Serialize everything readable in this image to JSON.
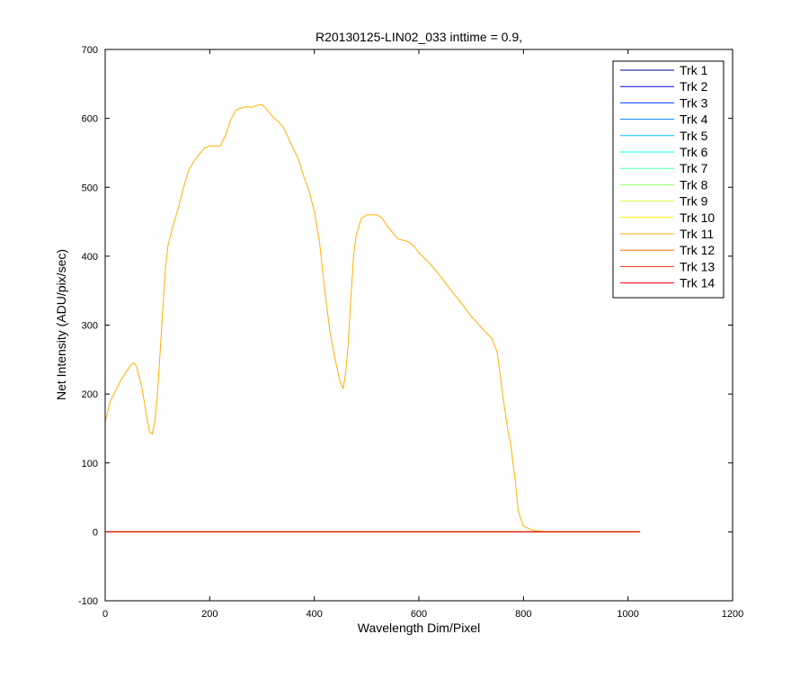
{
  "chart_data": {
    "type": "line",
    "title": "R20130125-LIN02_033 inttime = 0.9,",
    "xlabel": "Wavelength Dim/Pixel",
    "ylabel": "Net Intensity (ADU/pix/sec)",
    "xlim": [
      0,
      1200
    ],
    "ylim": [
      -100,
      700
    ],
    "xticks": [
      0,
      200,
      400,
      600,
      800,
      1000,
      1200
    ],
    "yticks": [
      -100,
      0,
      100,
      200,
      300,
      400,
      500,
      600,
      700
    ],
    "grid": false,
    "legend_position": "top-right",
    "series": [
      {
        "name": "Trk 1",
        "color": "#00008f",
        "x": [
          0,
          1023
        ],
        "y": [
          0,
          0
        ]
      },
      {
        "name": "Trk 2",
        "color": "#0000d6",
        "x": [
          0,
          1023
        ],
        "y": [
          0,
          0
        ]
      },
      {
        "name": "Trk 3",
        "color": "#0040ff",
        "x": [
          0,
          1023
        ],
        "y": [
          0,
          0
        ]
      },
      {
        "name": "Trk 4",
        "color": "#0080ff",
        "x": [
          0,
          1023
        ],
        "y": [
          0,
          0
        ]
      },
      {
        "name": "Trk 5",
        "color": "#00bfff",
        "x": [
          0,
          1023
        ],
        "y": [
          0,
          0
        ]
      },
      {
        "name": "Trk 6",
        "color": "#10ffef",
        "x": [
          0,
          1023
        ],
        "y": [
          0,
          0
        ]
      },
      {
        "name": "Trk 7",
        "color": "#50ffaf",
        "x": [
          0,
          1023
        ],
        "y": [
          0,
          0
        ]
      },
      {
        "name": "Trk 8",
        "color": "#8fff70",
        "x": [
          0,
          1023
        ],
        "y": [
          0,
          0
        ]
      },
      {
        "name": "Trk 9",
        "color": "#cfff30",
        "x": [
          0,
          1023
        ],
        "y": [
          0,
          0
        ]
      },
      {
        "name": "Trk 10",
        "color": "#ffef00",
        "x": [
          0,
          1023
        ],
        "y": [
          0,
          0
        ]
      },
      {
        "name": "Trk 11",
        "color": "#ffb000",
        "x": [
          0,
          10,
          20,
          30,
          40,
          50,
          55,
          60,
          70,
          80,
          85,
          90,
          95,
          100,
          105,
          110,
          115,
          120,
          125,
          130,
          140,
          150,
          160,
          170,
          180,
          190,
          200,
          210,
          220,
          230,
          240,
          250,
          260,
          270,
          280,
          290,
          300,
          310,
          320,
          330,
          340,
          350,
          360,
          370,
          380,
          390,
          400,
          410,
          420,
          430,
          440,
          450,
          455,
          460,
          465,
          470,
          475,
          480,
          490,
          500,
          510,
          520,
          530,
          540,
          550,
          560,
          570,
          580,
          590,
          600,
          620,
          640,
          660,
          680,
          700,
          720,
          740,
          750,
          755,
          760,
          770,
          775,
          780,
          785,
          790,
          800,
          820,
          850,
          900,
          950,
          1000,
          1023
        ],
        "y": [
          160,
          190,
          205,
          220,
          232,
          243,
          245,
          240,
          210,
          165,
          145,
          142,
          160,
          200,
          260,
          320,
          380,
          415,
          430,
          445,
          470,
          500,
          525,
          538,
          548,
          557,
          560,
          560,
          560,
          575,
          598,
          612,
          615,
          617,
          616,
          619,
          620,
          612,
          603,
          596,
          588,
          572,
          556,
          540,
          515,
          495,
          465,
          420,
          350,
          290,
          250,
          215,
          208,
          230,
          275,
          340,
          400,
          430,
          455,
          460,
          460,
          460,
          455,
          443,
          434,
          425,
          423,
          421,
          415,
          405,
          390,
          372,
          352,
          333,
          313,
          296,
          280,
          260,
          230,
          200,
          148,
          130,
          100,
          70,
          30,
          8,
          2,
          0,
          0,
          0,
          0,
          0
        ]
      },
      {
        "name": "Trk 12",
        "color": "#ff7000",
        "x": [
          0,
          1023
        ],
        "y": [
          0,
          0
        ]
      },
      {
        "name": "Trk 13",
        "color": "#ff3000",
        "x": [
          0,
          1023
        ],
        "y": [
          0,
          0
        ]
      },
      {
        "name": "Trk 14",
        "color": "#ef0000",
        "x": [
          0,
          1023
        ],
        "y": [
          0,
          0
        ]
      }
    ]
  }
}
